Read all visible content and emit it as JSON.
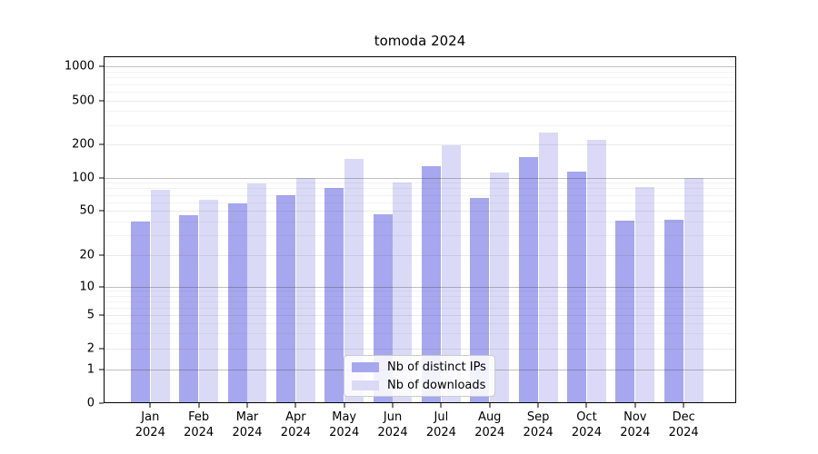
{
  "chart_data": {
    "type": "bar",
    "title": "tomoda 2024",
    "xlabel": "",
    "ylabel": "",
    "yscale": "symlog",
    "ylim": [
      0,
      1200
    ],
    "grid": true,
    "legend_position": "lower center",
    "categories": [
      "Jan 2024",
      "Feb 2024",
      "Mar 2024",
      "Apr 2024",
      "May 2024",
      "Jun 2024",
      "Jul 2024",
      "Aug 2024",
      "Sep 2024",
      "Oct 2024",
      "Nov 2024",
      "Dec 2024"
    ],
    "series": [
      {
        "name": "Nb of distinct IPs",
        "color": "#a7a7ef",
        "values": [
          40,
          46,
          58,
          70,
          81,
          47,
          128,
          66,
          153,
          113,
          41,
          42
        ]
      },
      {
        "name": "Nb of downloads",
        "color": "#dadaf7",
        "values": [
          78,
          63,
          89,
          100,
          148,
          90,
          195,
          112,
          258,
          220,
          82,
          100
        ]
      }
    ],
    "y_ticks": [
      0,
      1,
      2,
      5,
      10,
      20,
      50,
      100,
      200,
      500,
      1000
    ],
    "y_major_gridlines": [
      1,
      10,
      100,
      1000
    ],
    "grid_minor": [
      3,
      4,
      6,
      7,
      8,
      9,
      30,
      40,
      60,
      70,
      80,
      90,
      300,
      400,
      600,
      700,
      800,
      900
    ]
  },
  "colors": {
    "background": "#ffffff",
    "spine": "#000000",
    "bar_ips": "#a7a7ef",
    "bar_downloads": "#dadaf7"
  }
}
